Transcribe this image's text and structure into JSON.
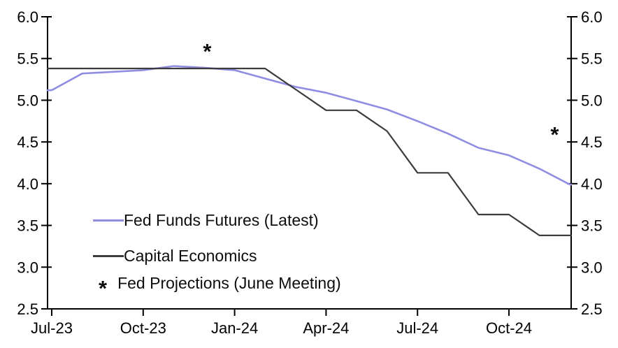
{
  "page": {
    "background_color": "#ffffff",
    "text_color": "#000000"
  },
  "chart_data": {
    "type": "line",
    "title": "",
    "xlabel": "",
    "ylabel": "",
    "ylim": [
      2.5,
      6.0
    ],
    "grid": false,
    "y_ticks": [
      "6.0",
      "5.5",
      "5.0",
      "4.5",
      "4.0",
      "3.5",
      "3.0",
      "2.5"
    ],
    "y_tick_values": [
      6.0,
      5.5,
      5.0,
      4.5,
      4.0,
      3.5,
      3.0,
      2.5
    ],
    "y_axis_sides": [
      "left",
      "right"
    ],
    "x_tick_labels": [
      "Jul-23",
      "Oct-23",
      "Jan-24",
      "Apr-24",
      "Jul-24",
      "Oct-24"
    ],
    "x_tick_month_indices": [
      0,
      3,
      6,
      9,
      12,
      15
    ],
    "months": [
      "Jul-23",
      "Aug-23",
      "Sep-23",
      "Oct-23",
      "Nov-23",
      "Dec-23",
      "Jan-24",
      "Feb-24",
      "Mar-24",
      "Apr-24",
      "May-24",
      "Jun-24",
      "Jul-24",
      "Aug-24",
      "Sep-24",
      "Oct-24",
      "Nov-24",
      "Dec-24"
    ],
    "series": [
      {
        "name": "Fed Funds Futures (Latest)",
        "color": "#8f8de2",
        "line_width": 2.6,
        "values": [
          5.12,
          5.32,
          5.34,
          5.36,
          5.41,
          5.39,
          5.36,
          5.26,
          5.16,
          5.09,
          4.99,
          4.89,
          4.75,
          4.6,
          4.43,
          4.34,
          4.18,
          3.99
        ]
      },
      {
        "name": "Capital Economics",
        "color": "#3c3c3c",
        "line_width": 2.2,
        "values": [
          5.38,
          5.38,
          5.38,
          5.38,
          5.38,
          5.38,
          5.38,
          5.38,
          5.13,
          4.88,
          4.88,
          4.63,
          4.13,
          4.13,
          3.63,
          3.63,
          3.38,
          3.38
        ]
      }
    ],
    "annotations": [
      {
        "symbol": "*",
        "label": "Fed Projections (June Meeting)",
        "month": "Dec-23",
        "month_index": 5.1,
        "value": 5.6
      },
      {
        "symbol": "*",
        "label": "Fed Projections (June Meeting)",
        "month": "Dec-24",
        "month_index": 16.5,
        "value": 4.6
      }
    ],
    "legend": {
      "position": "inside-bottom-left",
      "items": [
        {
          "type": "line",
          "label": "Fed Funds Futures (Latest)",
          "color": "#8f8de2"
        },
        {
          "type": "line",
          "label": "Capital Economics",
          "color": "#3c3c3c"
        },
        {
          "type": "symbol",
          "symbol": "*",
          "label": "Fed Projections (June Meeting)",
          "color": "#0d0d0d"
        }
      ]
    },
    "axis_color": "#000000"
  }
}
